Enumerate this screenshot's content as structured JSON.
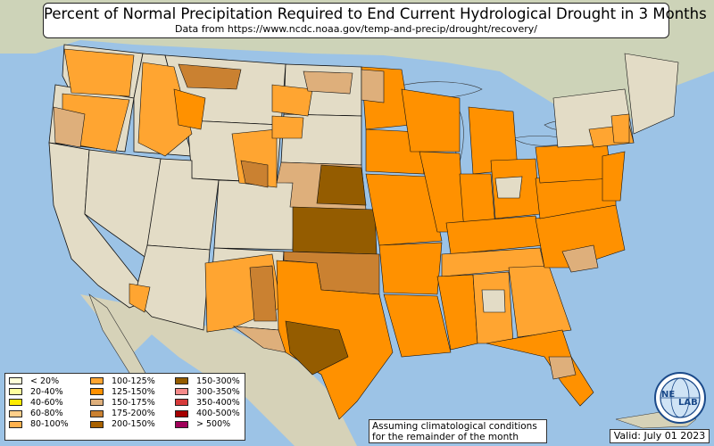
{
  "header": {
    "title": "Percent of Normal Precipitation Required to End Current Hydrological Drought in 3 Months",
    "subtitle": "Data from https://www.ncdc.noaa.gov/temp-and-precip/drought/recovery/"
  },
  "legend": {
    "items": [
      {
        "label": "< 20%",
        "color": "#ffffd9"
      },
      {
        "label": "20-40%",
        "color": "#ffff9e"
      },
      {
        "label": "40-60%",
        "color": "#ffeb00"
      },
      {
        "label": "60-80%",
        "color": "#ffcf8a"
      },
      {
        "label": "80-100%",
        "color": "#ffb14d"
      },
      {
        "label": "100-125%",
        "color": "#ffa531"
      },
      {
        "label": "125-150%",
        "color": "#ff9100"
      },
      {
        "label": "150-175%",
        "color": "#deaf7b"
      },
      {
        "label": "175-200%",
        "color": "#ca8131"
      },
      {
        "label": "200-150%",
        "color": "#a86100"
      },
      {
        "label": "150-300%",
        "color": "#945c00"
      },
      {
        "label": "300-350%",
        "color": "#f48a8a"
      },
      {
        "label": "350-400%",
        "color": "#d63a3a"
      },
      {
        "label": "400-500%",
        "color": "#a50000"
      },
      {
        "label": "> 500%",
        "color": "#a0005a"
      }
    ]
  },
  "footer": {
    "note_line1": "Assuming climatological conditions",
    "note_line2": "for the remainder of the month",
    "valid": "Valid: July 01 2023"
  },
  "logo": {
    "text_left": "NE",
    "text_right": "LAB",
    "icon": "globe-logo-icon"
  },
  "colors": {
    "ocean": "#9cc3e6",
    "land_neutral": "#e3dcc6",
    "state_border": "#111111"
  }
}
